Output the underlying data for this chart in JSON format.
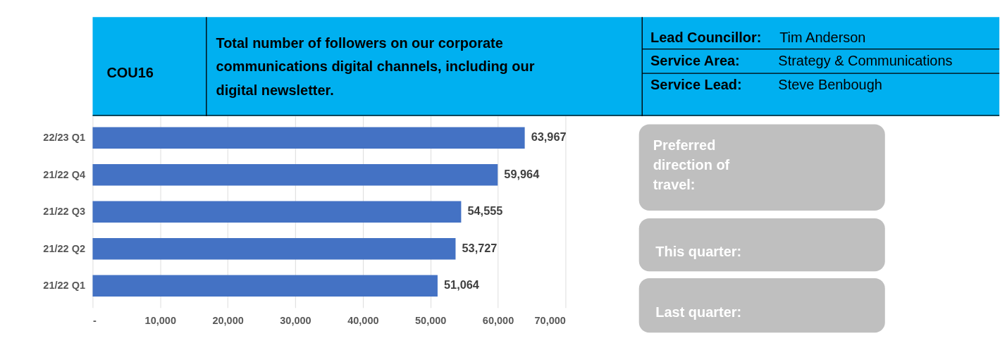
{
  "chart_data": {
    "type": "bar",
    "orientation": "horizontal",
    "title": "Total number of followers on our corporate communications digital channels, including our digital newsletter.",
    "categories": [
      "22/23 Q1",
      "21/22 Q4",
      "21/22 Q3",
      "21/22 Q2",
      "21/22 Q1"
    ],
    "values": [
      63967,
      59964,
      54555,
      53727,
      51064
    ],
    "color": "#4472c4",
    "xlim": [
      0,
      70000
    ],
    "xticks": [
      {
        "value": 0,
        "label": "-"
      },
      {
        "value": 10000,
        "label": "10,000"
      },
      {
        "value": 20000,
        "label": "20,000"
      },
      {
        "value": 30000,
        "label": "30,000"
      },
      {
        "value": 40000,
        "label": "40,000"
      },
      {
        "value": 50000,
        "label": "50,000"
      },
      {
        "value": 60000,
        "label": "60,000"
      },
      {
        "value": 70000,
        "label": "70,000"
      }
    ],
    "grid": "x",
    "value_labels": [
      "63,967",
      "59,964",
      "54,555",
      "53,727",
      "51,064"
    ],
    "legend": false,
    "annotations": [
      "COU16",
      "Lead Councillor:",
      "Tim Anderson",
      "Service Area:",
      "Strategy & Communications",
      "Service Lead:",
      "Steve Benbough",
      "Preferred direction of travel:",
      "This quarter:",
      "Last quarter:"
    ]
  }
}
